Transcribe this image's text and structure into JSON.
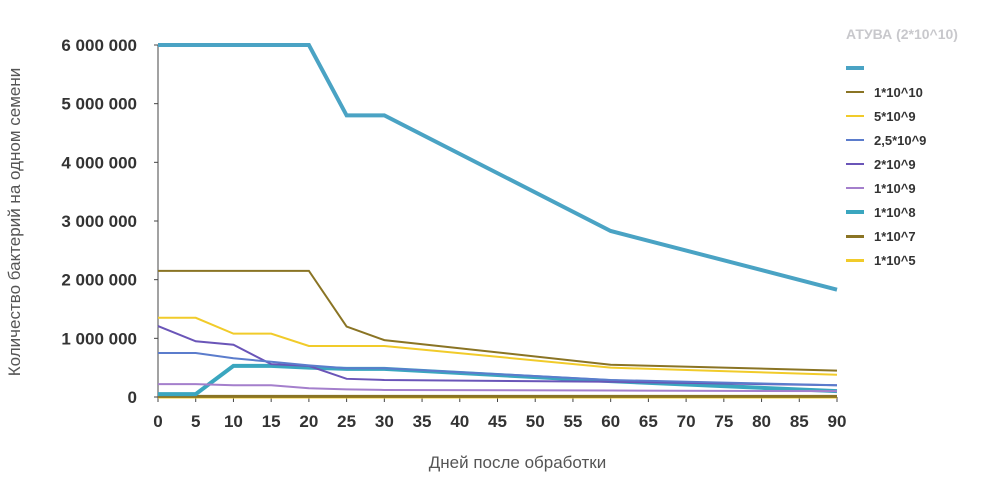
{
  "chart_data": {
    "type": "line",
    "xlabel": "Дней после обработки",
    "ylabel": "Количество бактерий на одном семени",
    "xlim": [
      0,
      90
    ],
    "ylim": [
      0,
      6000000
    ],
    "xticks": [
      "0",
      "5",
      "10",
      "15",
      "20",
      "25",
      "30",
      "35",
      "40",
      "45",
      "50",
      "55",
      "60",
      "65",
      "70",
      "75",
      "80",
      "85",
      "90"
    ],
    "yticks": [
      "0",
      "1 000 000",
      "2 000 000",
      "3 000 000",
      "4 000 000",
      "5 000 000",
      "6 000 000"
    ],
    "legend_title": "АТУВА (2*10^10)",
    "legend_position": "right",
    "x": [
      0,
      5,
      10,
      15,
      20,
      25,
      30,
      60,
      90
    ],
    "series": [
      {
        "name": "",
        "color": "#4aa3c4",
        "width": 4,
        "values": [
          6000000,
          6000000,
          6000000,
          6000000,
          6000000,
          4800000,
          4800000,
          2830000,
          1830000
        ]
      },
      {
        "name": "1*10^10",
        "color": "#8a7424",
        "width": 2,
        "values": [
          2150000,
          2150000,
          2150000,
          2150000,
          2150000,
          1200000,
          970000,
          550000,
          450000
        ]
      },
      {
        "name": "5*10^9",
        "color": "#f1cb2a",
        "width": 2,
        "values": [
          1350000,
          1350000,
          1080000,
          1080000,
          870000,
          870000,
          870000,
          500000,
          380000
        ]
      },
      {
        "name": "2,5*10^9",
        "color": "#5b7ccc",
        "width": 2,
        "values": [
          750000,
          750000,
          660000,
          600000,
          540000,
          490000,
          490000,
          290000,
          200000
        ]
      },
      {
        "name": "2*10^9",
        "color": "#6a55b8",
        "width": 2,
        "values": [
          1210000,
          950000,
          890000,
          560000,
          530000,
          310000,
          290000,
          260000,
          200000
        ]
      },
      {
        "name": "1*10^9",
        "color": "#a47fcc",
        "width": 2,
        "values": [
          220000,
          220000,
          200000,
          200000,
          150000,
          130000,
          120000,
          110000,
          100000
        ]
      },
      {
        "name": "1*10^8",
        "color": "#3aa6bf",
        "width": 4,
        "values": [
          50000,
          50000,
          530000,
          530000,
          500000,
          480000,
          480000,
          270000,
          100000
        ]
      },
      {
        "name": "1*10^7",
        "color": "#8a7424",
        "width": 3,
        "values": [
          10000,
          10000,
          10000,
          10000,
          10000,
          10000,
          10000,
          10000,
          10000
        ]
      },
      {
        "name": "1*10^5",
        "color": "#f1cb2a",
        "width": 3,
        "values": [
          0,
          0,
          0,
          0,
          0,
          0,
          0,
          0,
          0
        ]
      }
    ]
  }
}
